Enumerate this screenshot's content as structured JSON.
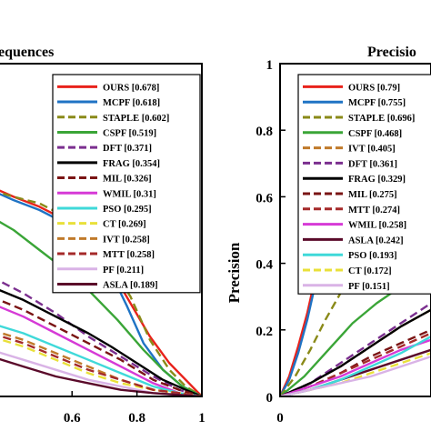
{
  "chart_data": [
    {
      "type": "line",
      "title": "equences",
      "xlabel": "",
      "ylabel": "",
      "xlim": [
        0.35,
        1.0
      ],
      "ylim": [
        0,
        1
      ],
      "xticks": [
        "0.6",
        "0.8",
        "1"
      ],
      "legend_position": "top-right",
      "grid": false,
      "series": [
        {
          "name": "OURS [0.678]",
          "color": "#e8221b",
          "dash": "solid",
          "points": [
            [
              0.35,
              0.63
            ],
            [
              0.42,
              0.6
            ],
            [
              0.5,
              0.57
            ],
            [
              0.58,
              0.53
            ],
            [
              0.66,
              0.46
            ],
            [
              0.72,
              0.38
            ],
            [
              0.78,
              0.28
            ],
            [
              0.84,
              0.18
            ],
            [
              0.9,
              0.1
            ],
            [
              0.95,
              0.05
            ],
            [
              1.0,
              0.0
            ]
          ]
        },
        {
          "name": "MCPF [0.618]",
          "color": "#1f73c4",
          "dash": "solid",
          "points": [
            [
              0.35,
              0.62
            ],
            [
              0.42,
              0.59
            ],
            [
              0.5,
              0.56
            ],
            [
              0.58,
              0.52
            ],
            [
              0.66,
              0.45
            ],
            [
              0.72,
              0.37
            ],
            [
              0.77,
              0.27
            ],
            [
              0.82,
              0.16
            ],
            [
              0.88,
              0.08
            ],
            [
              0.94,
              0.03
            ],
            [
              1.0,
              0.0
            ]
          ]
        },
        {
          "name": "STAPLE [0.602]",
          "color": "#8a8a18",
          "dash": "dash",
          "points": [
            [
              0.35,
              0.62
            ],
            [
              0.42,
              0.6
            ],
            [
              0.5,
              0.58
            ],
            [
              0.58,
              0.54
            ],
            [
              0.66,
              0.47
            ],
            [
              0.72,
              0.39
            ],
            [
              0.78,
              0.3
            ],
            [
              0.84,
              0.17
            ],
            [
              0.9,
              0.08
            ],
            [
              0.95,
              0.03
            ],
            [
              1.0,
              0.0
            ]
          ]
        },
        {
          "name": "CSPF [0.519]",
          "color": "#3aa537",
          "dash": "solid",
          "points": [
            [
              0.35,
              0.54
            ],
            [
              0.42,
              0.5
            ],
            [
              0.5,
              0.44
            ],
            [
              0.58,
              0.38
            ],
            [
              0.66,
              0.31
            ],
            [
              0.74,
              0.23
            ],
            [
              0.82,
              0.14
            ],
            [
              0.88,
              0.08
            ],
            [
              0.94,
              0.03
            ],
            [
              1.0,
              0.0
            ]
          ]
        },
        {
          "name": "DFT [0.371]",
          "color": "#7b2f8f",
          "dash": "dash",
          "points": [
            [
              0.35,
              0.36
            ],
            [
              0.45,
              0.31
            ],
            [
              0.55,
              0.25
            ],
            [
              0.65,
              0.18
            ],
            [
              0.75,
              0.12
            ],
            [
              0.85,
              0.06
            ],
            [
              0.93,
              0.02
            ],
            [
              1.0,
              0.0
            ]
          ]
        },
        {
          "name": "FRAG [0.354]",
          "color": "#000000",
          "dash": "solid",
          "points": [
            [
              0.35,
              0.33
            ],
            [
              0.45,
              0.29
            ],
            [
              0.55,
              0.24
            ],
            [
              0.65,
              0.19
            ],
            [
              0.72,
              0.15
            ],
            [
              0.8,
              0.1
            ],
            [
              0.88,
              0.05
            ],
            [
              0.95,
              0.02
            ],
            [
              1.0,
              0.0
            ]
          ]
        },
        {
          "name": "MIL [0.326]",
          "color": "#7a1414",
          "dash": "dash",
          "points": [
            [
              0.35,
              0.3
            ],
            [
              0.45,
              0.26
            ],
            [
              0.55,
              0.21
            ],
            [
              0.65,
              0.16
            ],
            [
              0.75,
              0.11
            ],
            [
              0.85,
              0.05
            ],
            [
              0.93,
              0.02
            ],
            [
              1.0,
              0.0
            ]
          ]
        },
        {
          "name": "WMIL [0.31]",
          "color": "#d63ad6",
          "dash": "solid",
          "points": [
            [
              0.35,
              0.28
            ],
            [
              0.45,
              0.24
            ],
            [
              0.55,
              0.19
            ],
            [
              0.65,
              0.14
            ],
            [
              0.75,
              0.09
            ],
            [
              0.85,
              0.04
            ],
            [
              0.93,
              0.01
            ],
            [
              1.0,
              0.0
            ]
          ]
        },
        {
          "name": "PSO [0.295]",
          "color": "#3fd9d9",
          "dash": "solid",
          "points": [
            [
              0.35,
              0.22
            ],
            [
              0.45,
              0.19
            ],
            [
              0.55,
              0.15
            ],
            [
              0.65,
              0.11
            ],
            [
              0.75,
              0.07
            ],
            [
              0.85,
              0.03
            ],
            [
              0.93,
              0.01
            ],
            [
              1.0,
              0.0
            ]
          ]
        },
        {
          "name": "CT [0.269]",
          "color": "#e9e03a",
          "dash": "dash",
          "points": [
            [
              0.35,
              0.18
            ],
            [
              0.45,
              0.15
            ],
            [
              0.55,
              0.11
            ],
            [
              0.65,
              0.07
            ],
            [
              0.75,
              0.04
            ],
            [
              0.85,
              0.02
            ],
            [
              0.93,
              0.01
            ],
            [
              1.0,
              0.0
            ]
          ]
        },
        {
          "name": "IVT [0.258]",
          "color": "#c07a2a",
          "dash": "dash",
          "points": [
            [
              0.35,
              0.2
            ],
            [
              0.45,
              0.17
            ],
            [
              0.55,
              0.13
            ],
            [
              0.65,
              0.09
            ],
            [
              0.75,
              0.05
            ],
            [
              0.85,
              0.02
            ],
            [
              0.93,
              0.01
            ],
            [
              1.0,
              0.0
            ]
          ]
        },
        {
          "name": "MTT [0.258]",
          "color": "#a52a2a",
          "dash": "dash",
          "points": [
            [
              0.35,
              0.19
            ],
            [
              0.45,
              0.16
            ],
            [
              0.55,
              0.12
            ],
            [
              0.65,
              0.08
            ],
            [
              0.75,
              0.05
            ],
            [
              0.85,
              0.02
            ],
            [
              0.93,
              0.01
            ],
            [
              1.0,
              0.0
            ]
          ]
        },
        {
          "name": "PF [0.211]",
          "color": "#d9b3e6",
          "dash": "solid",
          "points": [
            [
              0.35,
              0.14
            ],
            [
              0.45,
              0.11
            ],
            [
              0.55,
              0.08
            ],
            [
              0.65,
              0.05
            ],
            [
              0.75,
              0.03
            ],
            [
              0.85,
              0.01
            ],
            [
              1.0,
              0.0
            ]
          ]
        },
        {
          "name": "ASLA [0.189]",
          "color": "#5a0a2a",
          "dash": "solid",
          "points": [
            [
              0.35,
              0.12
            ],
            [
              0.45,
              0.09
            ],
            [
              0.55,
              0.06
            ],
            [
              0.65,
              0.04
            ],
            [
              0.75,
              0.02
            ],
            [
              0.85,
              0.01
            ],
            [
              1.0,
              0.0
            ]
          ]
        }
      ]
    },
    {
      "type": "line",
      "title": "Precisio",
      "xlabel": "",
      "ylabel": "Precision",
      "xlim": [
        0,
        0.5
      ],
      "ylim": [
        0,
        1
      ],
      "xticks": [
        "0"
      ],
      "yticks": [
        "0",
        "0.2",
        "0.4",
        "0.6",
        "0.8",
        "1"
      ],
      "legend_position": "top-right",
      "grid": false,
      "series": [
        {
          "name": "OURS [0.79]",
          "color": "#e8221b",
          "dash": "solid",
          "points": [
            [
              0.0,
              0.0
            ],
            [
              0.03,
              0.06
            ],
            [
              0.06,
              0.15
            ],
            [
              0.09,
              0.25
            ],
            [
              0.11,
              0.33
            ],
            [
              0.13,
              0.4
            ]
          ]
        },
        {
          "name": "MCPF [0.755]",
          "color": "#1f73c4",
          "dash": "solid",
          "points": [
            [
              0.0,
              0.0
            ],
            [
              0.03,
              0.05
            ],
            [
              0.06,
              0.13
            ],
            [
              0.09,
              0.23
            ],
            [
              0.11,
              0.31
            ],
            [
              0.13,
              0.38
            ]
          ]
        },
        {
          "name": "STAPLE [0.696]",
          "color": "#8a8a18",
          "dash": "dash",
          "points": [
            [
              0.0,
              0.0
            ],
            [
              0.05,
              0.06
            ],
            [
              0.1,
              0.14
            ],
            [
              0.15,
              0.23
            ],
            [
              0.2,
              0.31
            ],
            [
              0.24,
              0.37
            ]
          ]
        },
        {
          "name": "CSPF [0.468]",
          "color": "#3aa537",
          "dash": "solid",
          "points": [
            [
              0.0,
              0.0
            ],
            [
              0.08,
              0.06
            ],
            [
              0.16,
              0.14
            ],
            [
              0.24,
              0.22
            ],
            [
              0.32,
              0.28
            ],
            [
              0.4,
              0.33
            ],
            [
              0.5,
              0.38
            ]
          ]
        },
        {
          "name": "IVT [0.405]",
          "color": "#c07a2a",
          "dash": "dash",
          "points": [
            [
              0.0,
              0.0
            ],
            [
              0.1,
              0.04
            ],
            [
              0.2,
              0.09
            ],
            [
              0.3,
              0.15
            ],
            [
              0.4,
              0.21
            ],
            [
              0.5,
              0.26
            ]
          ]
        },
        {
          "name": "DFT [0.361]",
          "color": "#7b2f8f",
          "dash": "dash",
          "points": [
            [
              0.0,
              0.0
            ],
            [
              0.1,
              0.04
            ],
            [
              0.2,
              0.1
            ],
            [
              0.3,
              0.16
            ],
            [
              0.4,
              0.22
            ],
            [
              0.5,
              0.28
            ]
          ]
        },
        {
          "name": "FRAG [0.329]",
          "color": "#000000",
          "dash": "solid",
          "points": [
            [
              0.0,
              0.0
            ],
            [
              0.1,
              0.04
            ],
            [
              0.2,
              0.09
            ],
            [
              0.3,
              0.15
            ],
            [
              0.4,
              0.21
            ],
            [
              0.5,
              0.26
            ]
          ]
        },
        {
          "name": "MIL [0.275]",
          "color": "#7a1414",
          "dash": "dash",
          "points": [
            [
              0.0,
              0.0
            ],
            [
              0.1,
              0.03
            ],
            [
              0.2,
              0.07
            ],
            [
              0.3,
              0.12
            ],
            [
              0.4,
              0.16
            ],
            [
              0.5,
              0.2
            ]
          ]
        },
        {
          "name": "MTT [0.274]",
          "color": "#a52a2a",
          "dash": "dash",
          "points": [
            [
              0.0,
              0.0
            ],
            [
              0.1,
              0.03
            ],
            [
              0.2,
              0.07
            ],
            [
              0.3,
              0.11
            ],
            [
              0.4,
              0.15
            ],
            [
              0.5,
              0.19
            ]
          ]
        },
        {
          "name": "WMIL [0.258]",
          "color": "#d63ad6",
          "dash": "solid",
          "points": [
            [
              0.0,
              0.0
            ],
            [
              0.1,
              0.03
            ],
            [
              0.2,
              0.06
            ],
            [
              0.3,
              0.1
            ],
            [
              0.4,
              0.14
            ],
            [
              0.5,
              0.17
            ]
          ]
        },
        {
          "name": "ASLA [0.242]",
          "color": "#5a0a2a",
          "dash": "solid",
          "points": [
            [
              0.0,
              0.0
            ],
            [
              0.1,
              0.02
            ],
            [
              0.2,
              0.05
            ],
            [
              0.3,
              0.08
            ],
            [
              0.4,
              0.11
            ],
            [
              0.5,
              0.14
            ]
          ]
        },
        {
          "name": "PSO [0.193]",
          "color": "#3fd9d9",
          "dash": "solid",
          "points": [
            [
              0.0,
              0.0
            ],
            [
              0.1,
              0.02
            ],
            [
              0.2,
              0.05
            ],
            [
              0.3,
              0.09
            ],
            [
              0.4,
              0.13
            ],
            [
              0.5,
              0.18
            ]
          ]
        },
        {
          "name": "CT [0.172]",
          "color": "#e9e03a",
          "dash": "dash",
          "points": [
            [
              0.0,
              0.0
            ],
            [
              0.1,
              0.02
            ],
            [
              0.2,
              0.04
            ],
            [
              0.3,
              0.07
            ],
            [
              0.4,
              0.1
            ],
            [
              0.5,
              0.13
            ]
          ]
        },
        {
          "name": "PF [0.151]",
          "color": "#d9b3e6",
          "dash": "solid",
          "points": [
            [
              0.0,
              0.0
            ],
            [
              0.1,
              0.02
            ],
            [
              0.2,
              0.04
            ],
            [
              0.3,
              0.06
            ],
            [
              0.4,
              0.09
            ],
            [
              0.5,
              0.12
            ]
          ]
        }
      ]
    }
  ]
}
